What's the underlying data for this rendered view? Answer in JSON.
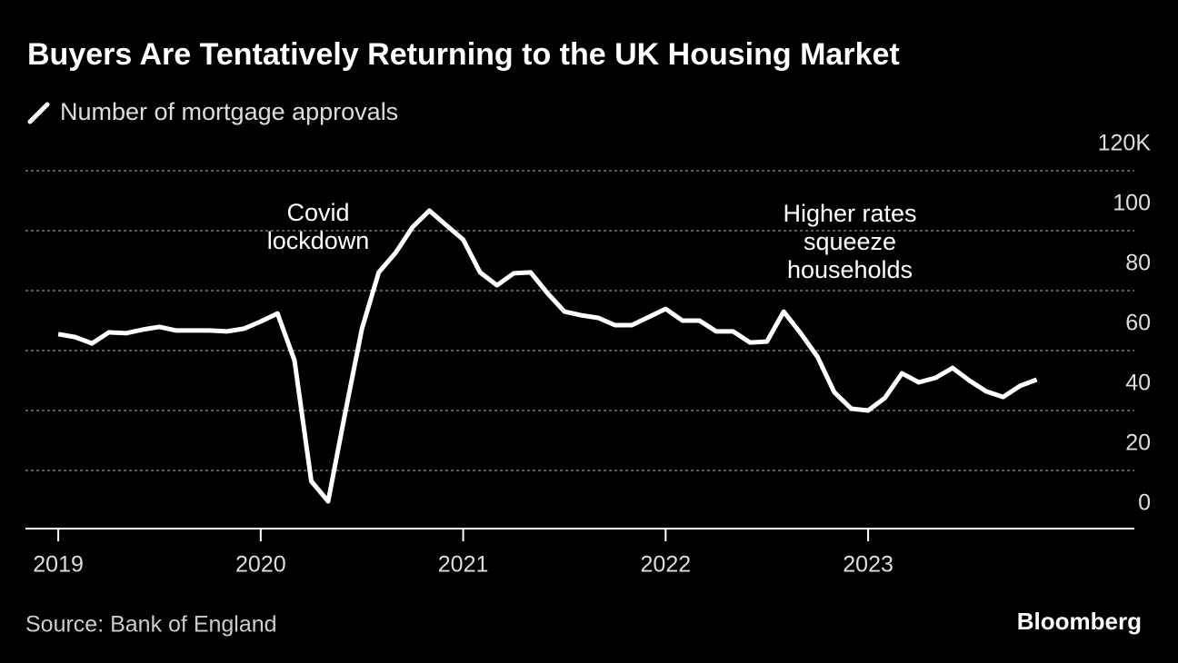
{
  "chart_data": {
    "type": "line",
    "title": "Buyers Are Tentatively Returning to the UK Housing Market",
    "source": "Source: Bank of England",
    "brand": "Bloomberg",
    "annotations": [
      [
        "Covid",
        "lockdown"
      ],
      [
        "Higher rates",
        "squeeze",
        "households"
      ]
    ],
    "x": [
      2019,
      2019.083,
      2019.167,
      2019.25,
      2019.333,
      2019.417,
      2019.5,
      2019.583,
      2019.667,
      2019.75,
      2019.833,
      2019.917,
      2020,
      2020.083,
      2020.167,
      2020.25,
      2020.333,
      2020.417,
      2020.5,
      2020.583,
      2020.667,
      2020.75,
      2020.833,
      2020.917,
      2021,
      2021.083,
      2021.167,
      2021.25,
      2021.333,
      2021.417,
      2021.5,
      2021.583,
      2021.667,
      2021.75,
      2021.833,
      2021.917,
      2022,
      2022.083,
      2022.167,
      2022.25,
      2022.333,
      2022.417,
      2022.5,
      2022.583,
      2022.667,
      2022.75,
      2022.833,
      2022.917,
      2023,
      2023.083,
      2023.167,
      2023.25,
      2023.333,
      2023.417,
      2023.5,
      2023.583,
      2023.667,
      2023.75,
      2023.833
    ],
    "series": [
      {
        "name": "Number of mortgage approvals",
        "color": "#ffffff",
        "values": [
          65.5,
          64.5,
          62.4,
          66.1,
          65.8,
          67,
          67.9,
          66.7,
          66.7,
          66.7,
          66.4,
          67.3,
          69.7,
          72.4,
          56.7,
          16.4,
          9.7,
          39.1,
          67.3,
          86.1,
          92.7,
          101.2,
          106.7,
          101.8,
          97,
          86.1,
          81.8,
          85.8,
          86.1,
          79.1,
          73,
          71.8,
          70.9,
          68.5,
          68.5,
          71.2,
          73.9,
          70,
          70,
          66.4,
          66.4,
          62.7,
          63,
          73,
          65.8,
          57.9,
          46.1,
          40.6,
          40,
          44.2,
          52.4,
          49.4,
          50.9,
          54.2,
          50,
          46.4,
          44.5,
          48.2,
          50.3
        ]
      }
    ],
    "xlim": [
      2018.838,
      2024.315
    ],
    "xticks": [
      2019,
      2020,
      2021,
      2022,
      2023
    ],
    "ylim": [
      0,
      120
    ],
    "yticks": [
      0,
      20,
      40,
      60,
      80,
      100,
      {
        "value": 120,
        "label": "120K"
      }
    ],
    "grid": true
  }
}
